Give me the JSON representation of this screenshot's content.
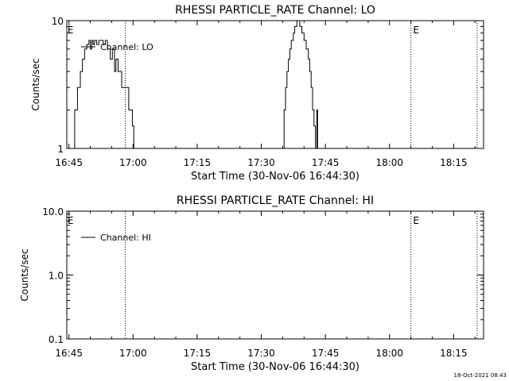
{
  "footer": {
    "timestamp": "18-Oct-2021 08:43"
  },
  "chart_data": [
    {
      "type": "line",
      "title": "RHESSI PARTICLE_RATE Channel: LO",
      "xlabel": "Start Time (30-Nov-06 16:44:30)",
      "ylabel": "Counts/sec",
      "yscale": "log",
      "xlim": [
        "16:44:30",
        "18:22:00"
      ],
      "ylim": [
        1,
        10
      ],
      "xticks": [
        "16:45",
        "17:00",
        "17:15",
        "17:30",
        "17:45",
        "18:00",
        "18:15"
      ],
      "yticks": [
        "1",
        "10"
      ],
      "legend": {
        "position": "top-left",
        "entries": [
          "Channel: LO"
        ]
      },
      "markers": {
        "labels": [
          {
            "text": "E",
            "time": "16:44:40"
          },
          {
            "text": "E",
            "time": "18:05:30"
          }
        ],
        "dotted_lines": [
          "16:58:10",
          "18:05:00",
          "18:20:30"
        ]
      },
      "series": [
        {
          "name": "Channel: LO",
          "segments": [
            [
              [
                "16:46:10",
                1.0
              ],
              [
                "16:46:20",
                2.0
              ],
              [
                "16:46:50",
                2.0
              ],
              [
                "16:47:00",
                3.0
              ],
              [
                "16:47:30",
                3.0
              ],
              [
                "16:47:40",
                4.0
              ],
              [
                "16:48:10",
                5.0
              ],
              [
                "16:48:40",
                6.0
              ],
              [
                "16:49:10",
                6.5
              ],
              [
                "16:49:40",
                7.0
              ],
              [
                "16:50:00",
                6.0
              ],
              [
                "16:50:20",
                7.0
              ],
              [
                "16:50:40",
                6.5
              ],
              [
                "16:51:00",
                7.0
              ],
              [
                "16:51:30",
                6.5
              ],
              [
                "16:52:00",
                7.0
              ],
              [
                "16:52:20",
                7.0
              ],
              [
                "16:53:00",
                6.5
              ],
              [
                "16:53:30",
                7.0
              ],
              [
                "16:54:00",
                6.0
              ],
              [
                "16:54:20",
                6.0
              ],
              [
                "16:54:40",
                5.0
              ],
              [
                "16:55:10",
                6.0
              ],
              [
                "16:55:40",
                4.0
              ],
              [
                "16:56:00",
                5.0
              ],
              [
                "16:56:30",
                4.0
              ],
              [
                "16:57:00",
                4.0
              ],
              [
                "16:57:20",
                3.0
              ],
              [
                "16:58:30",
                3.0
              ],
              [
                "16:58:50",
                3.0
              ],
              [
                "16:59:00",
                2.0
              ],
              [
                "16:59:30",
                2.0
              ],
              [
                "16:59:50",
                1.5
              ],
              [
                "17:00:10",
                1.0
              ]
            ],
            [
              [
                "17:35:00",
                1.0
              ],
              [
                "17:35:20",
                2.0
              ],
              [
                "17:35:40",
                3.0
              ],
              [
                "17:36:00",
                4.0
              ],
              [
                "17:36:20",
                5.0
              ],
              [
                "17:36:40",
                6.0
              ],
              [
                "17:37:00",
                7.0
              ],
              [
                "17:37:30",
                8.0
              ],
              [
                "17:37:50",
                9.0
              ],
              [
                "17:38:20",
                10.0
              ],
              [
                "17:39:00",
                9.0
              ],
              [
                "17:39:30",
                8.0
              ],
              [
                "17:40:00",
                7.0
              ],
              [
                "17:40:30",
                6.0
              ],
              [
                "17:41:00",
                5.0
              ],
              [
                "17:41:20",
                4.0
              ],
              [
                "17:41:40",
                3.0
              ],
              [
                "17:42:00",
                2.0
              ],
              [
                "17:42:20",
                1.5
              ],
              [
                "17:42:40",
                1.0
              ]
            ],
            [
              [
                "17:42:50",
                1.0
              ],
              [
                "17:43:00",
                2.0
              ],
              [
                "17:43:10",
                1.0
              ]
            ]
          ]
        }
      ]
    },
    {
      "type": "line",
      "title": "RHESSI PARTICLE_RATE Channel: HI",
      "xlabel": "Start Time (30-Nov-06 16:44:30)",
      "ylabel": "Counts/sec",
      "yscale": "log",
      "xlim": [
        "16:44:30",
        "18:22:00"
      ],
      "ylim": [
        0.1,
        10
      ],
      "xticks": [
        "16:45",
        "17:00",
        "17:15",
        "17:30",
        "17:45",
        "18:00",
        "18:15"
      ],
      "yticks": [
        "0.1",
        "1.0",
        "10.0"
      ],
      "legend": {
        "position": "top-left",
        "entries": [
          "Channel: HI"
        ]
      },
      "markers": {
        "labels": [
          {
            "text": "E",
            "time": "16:44:40"
          },
          {
            "text": "E",
            "time": "18:05:30"
          }
        ],
        "dotted_lines": [
          "16:58:10",
          "18:05:00",
          "18:20:30"
        ]
      },
      "series": [
        {
          "name": "Channel: HI",
          "segments": []
        }
      ]
    }
  ]
}
